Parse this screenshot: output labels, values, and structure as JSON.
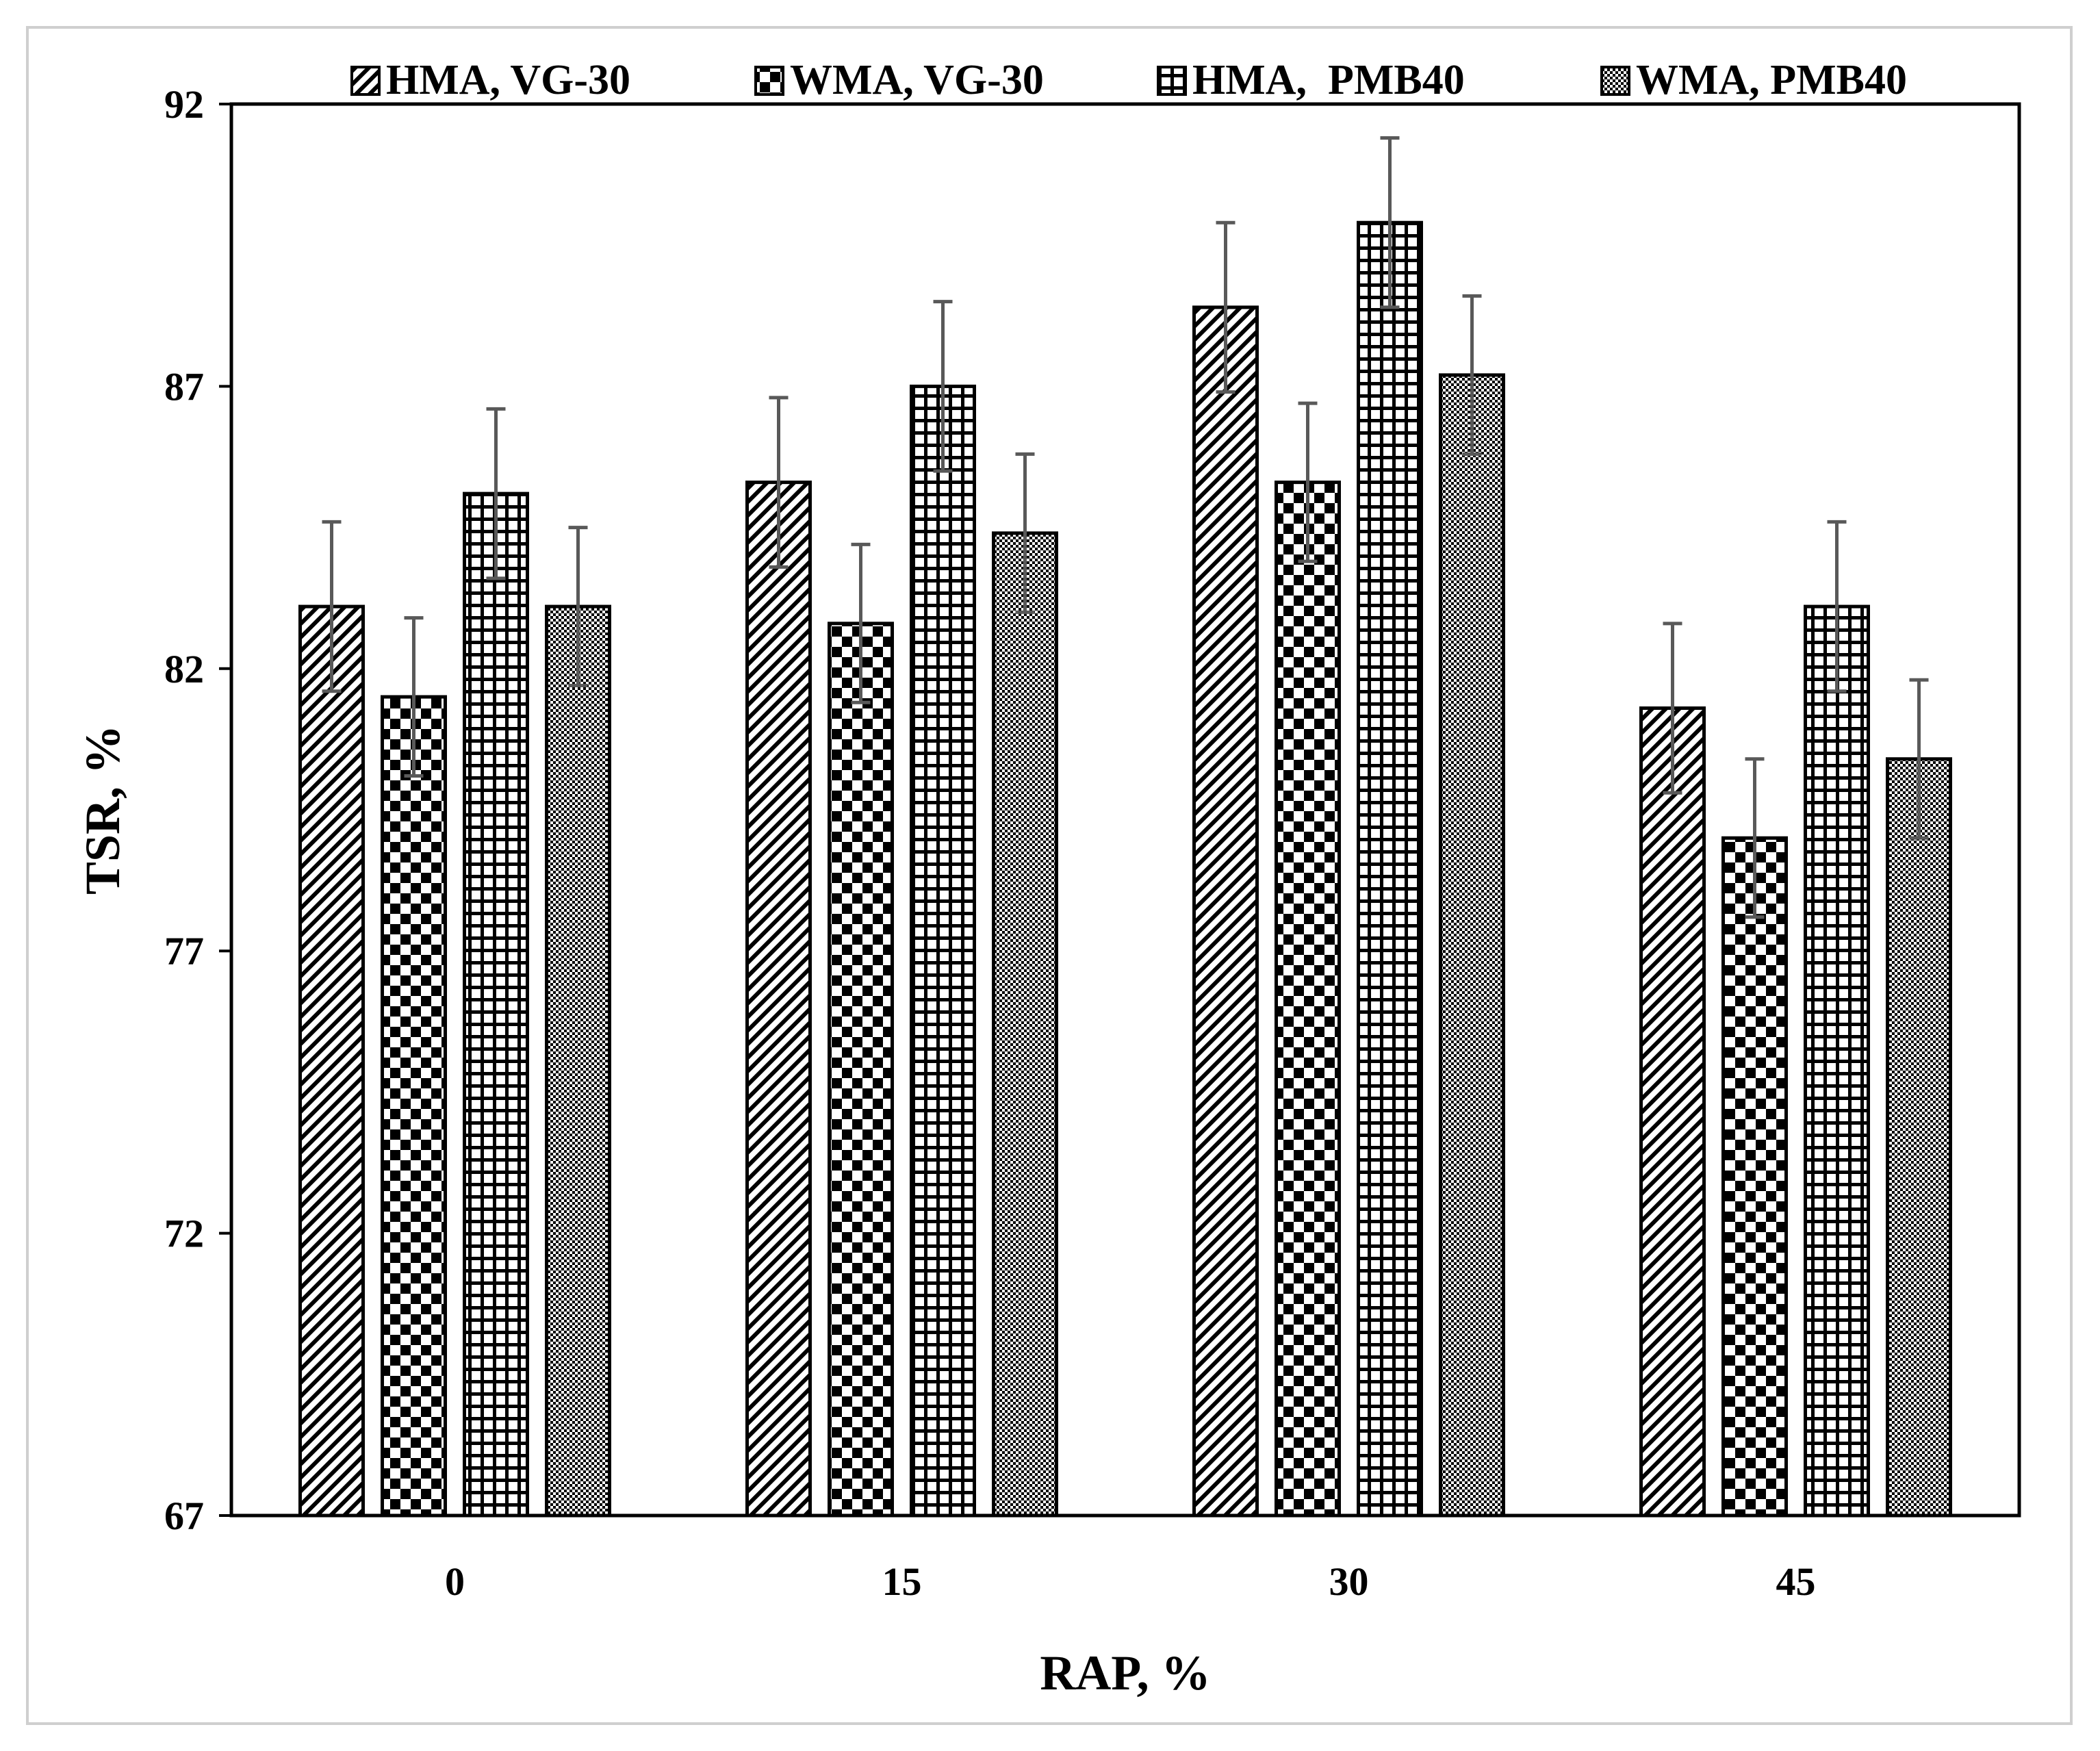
{
  "chart_data": {
    "type": "bar",
    "xlabel": "RAP, %",
    "ylabel": "TSR, %",
    "ylim": [
      67,
      92
    ],
    "yticks": [
      67,
      72,
      77,
      82,
      87,
      92
    ],
    "categories": [
      "0",
      "15",
      "30",
      "45"
    ],
    "legend_position": "top",
    "error_bars": true,
    "series": [
      {
        "name": "HMA, VG-30",
        "pattern": "diagonal-stripes",
        "values": [
          83.1,
          85.3,
          88.4,
          81.3
        ],
        "errors": [
          1.5,
          1.5,
          1.5,
          1.5
        ]
      },
      {
        "name": "WMA, VG-30",
        "pattern": "checkerboard",
        "values": [
          81.5,
          82.8,
          85.3,
          79.0
        ],
        "errors": [
          1.4,
          1.4,
          1.4,
          1.4
        ]
      },
      {
        "name": "HMA,  PMB40",
        "pattern": "grid",
        "values": [
          85.1,
          87.0,
          89.9,
          83.1
        ],
        "errors": [
          1.5,
          1.5,
          1.5,
          1.5
        ]
      },
      {
        "name": "WMA, PMB40",
        "pattern": "fine-dots",
        "values": [
          83.1,
          84.4,
          87.2,
          80.4
        ],
        "errors": [
          1.4,
          1.4,
          1.4,
          1.4
        ]
      }
    ],
    "colors": {
      "bar_outline": "#000000",
      "error_bar": "#595959",
      "axis": "#000000",
      "frame": "#cfcfcf"
    }
  }
}
